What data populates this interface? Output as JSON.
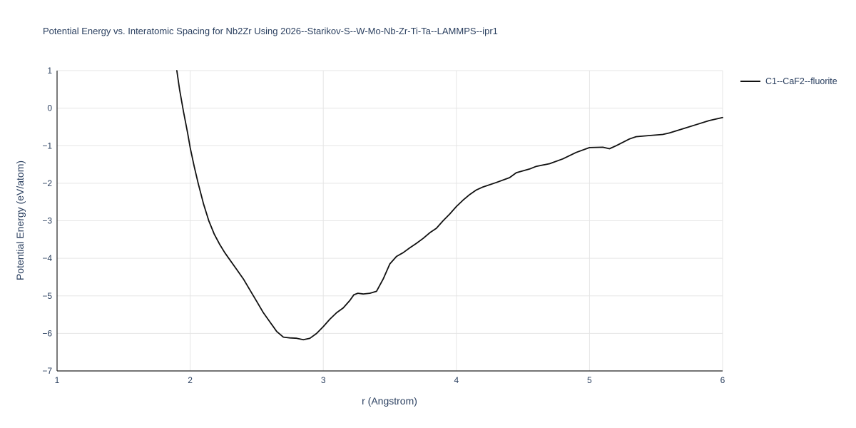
{
  "chart_data": {
    "type": "line",
    "title": "Potential Energy vs. Interatomic Spacing for Nb2Zr Using 2026--Starikov-S--W-Mo-Nb-Zr-Ti-Ta--LAMMPS--ipr1",
    "xlabel": "r (Angstrom)",
    "ylabel": "Potential Energy (eV/atom)",
    "xlim": [
      1,
      6
    ],
    "ylim": [
      -7,
      1
    ],
    "xticks": [
      1,
      2,
      3,
      4,
      5,
      6
    ],
    "xtick_labels": [
      "1",
      "2",
      "3",
      "4",
      "5",
      "6"
    ],
    "yticks": [
      1,
      0,
      -1,
      -2,
      -3,
      -4,
      -5,
      -6,
      -7
    ],
    "ytick_labels": [
      "1",
      "0",
      "−1",
      "−2",
      "−3",
      "−4",
      "−5",
      "−6",
      "−7"
    ],
    "grid": true,
    "legend_position": "top-right",
    "colors": {
      "text": "#2a3f5f",
      "grid": "#e5e5e5",
      "axis": "#222222",
      "line": "#111111",
      "background": "#ffffff"
    },
    "series": [
      {
        "name": "C1--CaF2--fluorite",
        "color": "#111111",
        "points": [
          [
            1.9,
            1.0
          ],
          [
            1.92,
            0.5
          ],
          [
            1.95,
            -0.1
          ],
          [
            1.98,
            -0.65
          ],
          [
            2.0,
            -1.05
          ],
          [
            2.03,
            -1.55
          ],
          [
            2.06,
            -2.0
          ],
          [
            2.1,
            -2.55
          ],
          [
            2.14,
            -3.0
          ],
          [
            2.18,
            -3.35
          ],
          [
            2.22,
            -3.62
          ],
          [
            2.26,
            -3.85
          ],
          [
            2.3,
            -4.05
          ],
          [
            2.35,
            -4.3
          ],
          [
            2.4,
            -4.55
          ],
          [
            2.45,
            -4.85
          ],
          [
            2.5,
            -5.15
          ],
          [
            2.55,
            -5.45
          ],
          [
            2.6,
            -5.7
          ],
          [
            2.65,
            -5.95
          ],
          [
            2.7,
            -6.1
          ],
          [
            2.75,
            -6.12
          ],
          [
            2.8,
            -6.13
          ],
          [
            2.85,
            -6.17
          ],
          [
            2.9,
            -6.13
          ],
          [
            2.95,
            -6.0
          ],
          [
            3.0,
            -5.82
          ],
          [
            3.05,
            -5.62
          ],
          [
            3.1,
            -5.45
          ],
          [
            3.15,
            -5.32
          ],
          [
            3.2,
            -5.12
          ],
          [
            3.23,
            -4.97
          ],
          [
            3.26,
            -4.93
          ],
          [
            3.3,
            -4.95
          ],
          [
            3.35,
            -4.93
          ],
          [
            3.4,
            -4.88
          ],
          [
            3.45,
            -4.55
          ],
          [
            3.5,
            -4.15
          ],
          [
            3.55,
            -3.95
          ],
          [
            3.6,
            -3.85
          ],
          [
            3.65,
            -3.72
          ],
          [
            3.7,
            -3.6
          ],
          [
            3.75,
            -3.47
          ],
          [
            3.8,
            -3.32
          ],
          [
            3.85,
            -3.2
          ],
          [
            3.9,
            -3.0
          ],
          [
            3.95,
            -2.82
          ],
          [
            4.0,
            -2.62
          ],
          [
            4.05,
            -2.45
          ],
          [
            4.1,
            -2.3
          ],
          [
            4.15,
            -2.18
          ],
          [
            4.2,
            -2.1
          ],
          [
            4.3,
            -1.98
          ],
          [
            4.4,
            -1.85
          ],
          [
            4.45,
            -1.72
          ],
          [
            4.55,
            -1.62
          ],
          [
            4.6,
            -1.55
          ],
          [
            4.7,
            -1.48
          ],
          [
            4.8,
            -1.35
          ],
          [
            4.9,
            -1.18
          ],
          [
            5.0,
            -1.05
          ],
          [
            5.1,
            -1.04
          ],
          [
            5.15,
            -1.08
          ],
          [
            5.2,
            -1.0
          ],
          [
            5.3,
            -0.82
          ],
          [
            5.35,
            -0.76
          ],
          [
            5.45,
            -0.73
          ],
          [
            5.55,
            -0.7
          ],
          [
            5.6,
            -0.66
          ],
          [
            5.7,
            -0.55
          ],
          [
            5.8,
            -0.44
          ],
          [
            5.9,
            -0.33
          ],
          [
            6.0,
            -0.25
          ]
        ]
      }
    ]
  }
}
